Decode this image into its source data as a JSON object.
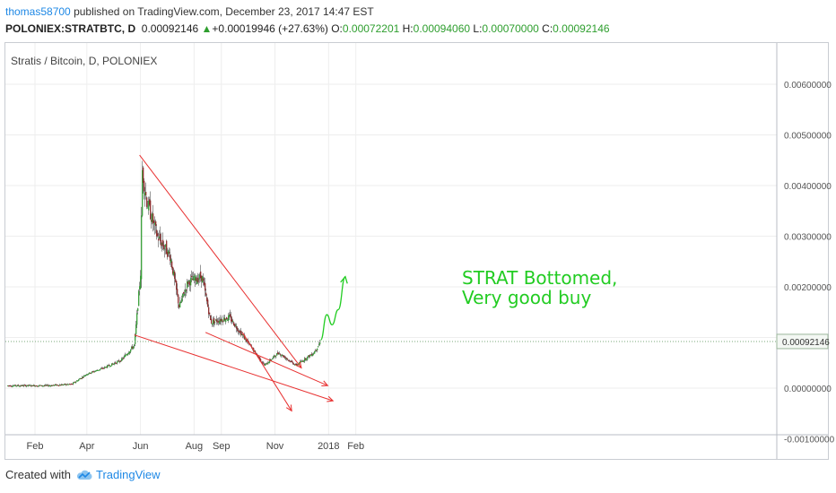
{
  "header": {
    "user": "thomas58700",
    "published_text": " published on TradingView.com, December 23, 2017 14:47 EST"
  },
  "ticker": {
    "symbol": "POLONIEX:STRATBTC, D",
    "price": "0.00092146",
    "arrow": "▲",
    "change": "+0.00019946 (+27.63%)",
    "open_label": "O:",
    "open": "0.00072201",
    "high_label": "H:",
    "high": "0.00094060",
    "low_label": "L:",
    "low": "0.00070000",
    "close_label": "C:",
    "close": "0.00092146"
  },
  "footer": {
    "created_with": "Created with",
    "brand": "TradingView",
    "brand_icon": "tradingview-cloud-icon"
  },
  "colors": {
    "up": "#2e9e2e",
    "down": "#8b2222",
    "trendline": "#e83030",
    "annotation": "#22cc22",
    "grid": "#eeeeee",
    "price_line": "#7aa87a"
  },
  "chart_data": {
    "type": "candlestick",
    "title": "Stratis / Bitcoin, D, POLONIEX",
    "x_ticks": [
      "Feb",
      "Apr",
      "Jun",
      "Aug",
      "Sep",
      "Nov",
      "2018",
      "Feb"
    ],
    "y_ticks": [
      "0.00600000",
      "0.00500000",
      "0.00400000",
      "0.00300000",
      "0.00200000",
      "0.00000000",
      "-0.00100000"
    ],
    "last_price_label": "0.00092146",
    "grid": true,
    "annotation": [
      "STRAT Bottomed,",
      "Very good buy"
    ],
    "x_axis_dates": [
      "2017-02-01",
      "2017-04-01",
      "2017-06-01",
      "2017-08-01",
      "2017-09-01",
      "2017-11-01",
      "2018-01-01",
      "2018-02-01"
    ],
    "price_path": [
      [
        "2017-01-01",
        5e-05
      ],
      [
        "2017-02-15",
        5e-05
      ],
      [
        "2017-03-15",
        8e-05
      ],
      [
        "2017-04-01",
        0.00028
      ],
      [
        "2017-04-20",
        0.0004
      ],
      [
        "2017-05-10",
        0.00055
      ],
      [
        "2017-05-25",
        0.00085
      ],
      [
        "2017-06-01",
        0.00225
      ],
      [
        "2017-06-03",
        0.0043
      ],
      [
        "2017-06-08",
        0.0037
      ],
      [
        "2017-06-20",
        0.003
      ],
      [
        "2017-07-05",
        0.0026
      ],
      [
        "2017-07-15",
        0.0016
      ],
      [
        "2017-07-25",
        0.0021
      ],
      [
        "2017-08-10",
        0.0022
      ],
      [
        "2017-08-20",
        0.0013
      ],
      [
        "2017-09-10",
        0.0014
      ],
      [
        "2017-10-01",
        0.0009
      ],
      [
        "2017-10-20",
        0.00045
      ],
      [
        "2017-11-05",
        0.0007
      ],
      [
        "2017-11-25",
        0.00045
      ],
      [
        "2017-12-15",
        0.0007
      ],
      [
        "2017-12-23",
        0.00092
      ]
    ],
    "trendlines": [
      {
        "from": [
          "2017-05-31",
          0.0046
        ],
        "to": [
          "2017-12-01",
          0.0004
        ]
      },
      {
        "from": [
          "2017-05-25",
          0.00105
        ],
        "to": [
          "2018-01-06",
          -0.00025
        ]
      },
      {
        "from": [
          "2017-08-14",
          0.0011
        ],
        "to": [
          "2017-12-31",
          5e-05
        ]
      },
      {
        "from": [
          "2017-09-25",
          0.0011
        ],
        "to": [
          "2017-11-20",
          -0.00045
        ]
      }
    ],
    "projection": [
      [
        "2017-12-23",
        0.00095
      ],
      [
        "2017-12-30",
        0.00145
      ],
      [
        "2018-01-05",
        0.00125
      ],
      [
        "2018-01-12",
        0.00155
      ],
      [
        "2018-01-20",
        0.0022
      ]
    ]
  }
}
